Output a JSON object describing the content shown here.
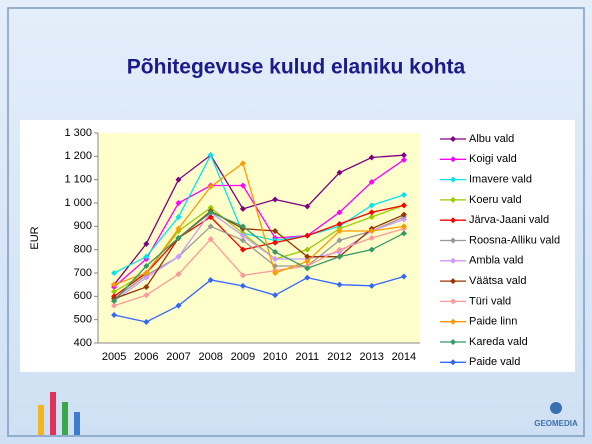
{
  "chart_data": {
    "type": "line",
    "title": "Põhitegevuse kulud elaniku kohta",
    "y_label": "EUR",
    "logo": "GEOMEDIA",
    "categories": [
      "2005",
      "2006",
      "2007",
      "2008",
      "2009",
      "2010",
      "2011",
      "2012",
      "2013",
      "2014"
    ],
    "ylim": [
      400,
      1300
    ],
    "yticks": [
      {
        "value": 400,
        "label": "400"
      },
      {
        "value": 500,
        "label": "500"
      },
      {
        "value": 600,
        "label": "600"
      },
      {
        "value": 700,
        "label": "700"
      },
      {
        "value": 800,
        "label": "800"
      },
      {
        "value": 900,
        "label": "900"
      },
      {
        "value": 1000,
        "label": "1 000"
      },
      {
        "value": 1100,
        "label": "1 100"
      },
      {
        "value": 1200,
        "label": "1 200"
      },
      {
        "value": 1300,
        "label": "1 300"
      }
    ],
    "grid": false,
    "legend": "right",
    "series": [
      {
        "name": "Albu vald",
        "color": "#800080",
        "values": [
          650,
          825,
          1100,
          1205,
          975,
          1015,
          985,
          1130,
          1195,
          1205
        ]
      },
      {
        "name": "Koigi vald",
        "color": "#ff00ff",
        "values": [
          640,
          760,
          1000,
          1075,
          1075,
          850,
          860,
          960,
          1090,
          1185
        ]
      },
      {
        "name": "Imavere vald",
        "color": "#00e5ee",
        "values": [
          700,
          770,
          940,
          1205,
          870,
          840,
          860,
          900,
          990,
          1035
        ]
      },
      {
        "name": "Koeru vald",
        "color": "#99cc00",
        "values": [
          620,
          700,
          880,
          980,
          870,
          760,
          800,
          890,
          940,
          990
        ]
      },
      {
        "name": "Järva-Jaani vald",
        "color": "#ff0000",
        "values": [
          600,
          700,
          850,
          940,
          800,
          830,
          860,
          910,
          960,
          990
        ]
      },
      {
        "name": "Roosna-Alliku vald",
        "color": "#999999",
        "values": [
          590,
          690,
          770,
          900,
          840,
          730,
          730,
          840,
          880,
          940
        ]
      },
      {
        "name": "Ambla vald",
        "color": "#cc99ff",
        "values": [
          580,
          680,
          770,
          960,
          860,
          760,
          760,
          790,
          880,
          930
        ]
      },
      {
        "name": "Väätsa vald",
        "color": "#993300",
        "values": [
          590,
          640,
          850,
          965,
          890,
          880,
          770,
          770,
          890,
          950
        ]
      },
      {
        "name": "Türi vald",
        "color": "#ff9999",
        "values": [
          560,
          605,
          695,
          845,
          690,
          710,
          730,
          800,
          850,
          890
        ]
      },
      {
        "name": "Paide linn",
        "color": "#ff9900",
        "values": [
          650,
          700,
          890,
          1070,
          1170,
          700,
          750,
          880,
          880,
          900
        ]
      },
      {
        "name": "Kareda vald",
        "color": "#339966",
        "values": [
          580,
          730,
          850,
          960,
          900,
          790,
          720,
          770,
          800,
          870
        ]
      },
      {
        "name": "Paide vald",
        "color": "#3366ff",
        "values": [
          520,
          490,
          560,
          670,
          645,
          605,
          680,
          650,
          645,
          685
        ]
      }
    ]
  }
}
